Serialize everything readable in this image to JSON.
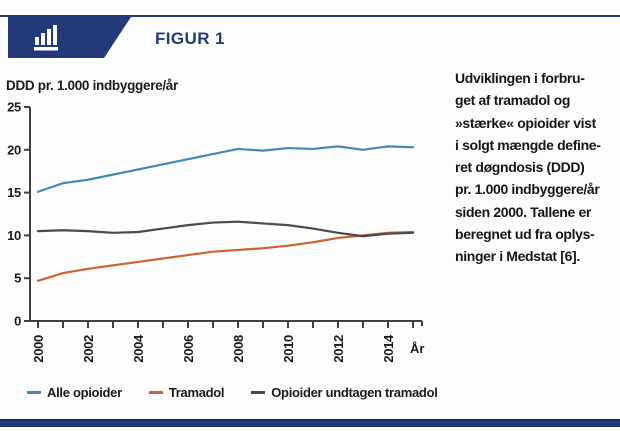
{
  "header": {
    "title": "FIGUR 1",
    "icon": "bar-chart-icon",
    "accent_color": "#223A77"
  },
  "chart_data": {
    "type": "line",
    "title": "",
    "ylabel": "DDD pr. 1.000 indbyggere/år",
    "xlabel": "År",
    "x": [
      2000,
      2001,
      2002,
      2003,
      2004,
      2005,
      2006,
      2007,
      2008,
      2009,
      2010,
      2011,
      2012,
      2013,
      2014,
      2015
    ],
    "x_tick_labels": [
      "2000",
      "2002",
      "2004",
      "2006",
      "2008",
      "2010",
      "2012",
      "2014"
    ],
    "yticks": [
      0,
      5,
      10,
      15,
      20,
      25
    ],
    "ylim": [
      0,
      25
    ],
    "grid": false,
    "legend_position": "bottom",
    "series": [
      {
        "name": "Alle opioider",
        "color": "#4289B4",
        "values": [
          15.1,
          16.1,
          16.5,
          17.1,
          17.7,
          18.3,
          18.9,
          19.5,
          20.1,
          19.9,
          20.2,
          20.1,
          20.4,
          20.0,
          20.4,
          20.3
        ]
      },
      {
        "name": "Tramadol",
        "color": "#CE6432",
        "values": [
          4.7,
          5.6,
          6.1,
          6.5,
          6.9,
          7.3,
          7.7,
          8.1,
          8.3,
          8.5,
          8.8,
          9.2,
          9.7,
          10.0,
          10.3,
          10.4
        ]
      },
      {
        "name": "Opioider undtagen tramadol",
        "color": "#4A4A4A",
        "values": [
          10.5,
          10.6,
          10.5,
          10.3,
          10.4,
          10.8,
          11.2,
          11.5,
          11.6,
          11.4,
          11.2,
          10.8,
          10.3,
          9.9,
          10.2,
          10.3
        ]
      }
    ]
  },
  "caption": {
    "text": "Udviklingen i forbru-\nget af tramadol og\n»stærke« opioider vist\ni solgt mængde define-\nret døgndosis (DDD)\npr. 1.000 indbyggere/år\nsiden 2000. Tallene er\nberegnet ud fra oplys-\nninger i Medstat [6]."
  },
  "colors": {
    "navy": "#223A77",
    "axis": "#404040",
    "text": "#1A1A1A"
  }
}
